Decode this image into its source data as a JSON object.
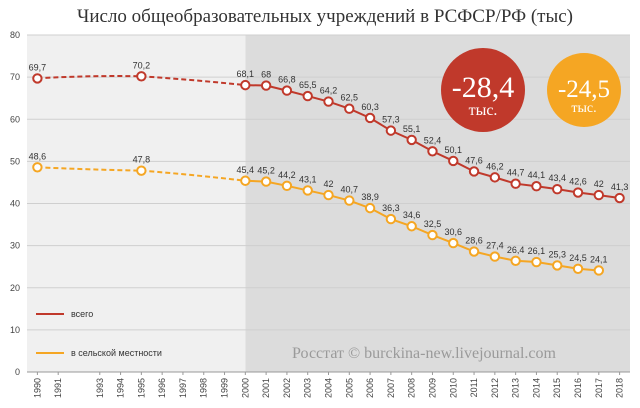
{
  "chart_data": {
    "type": "line",
    "title": "Число общеобразовательных учреждений в РСФСР/РФ (тыс)",
    "xlabel": "",
    "ylabel": "",
    "ylim": [
      0,
      80
    ],
    "yticks": [
      0,
      10,
      20,
      30,
      40,
      50,
      60,
      70,
      80
    ],
    "xticks": [
      1990,
      1991,
      1993,
      1994,
      1995,
      1996,
      1997,
      1998,
      1999,
      2000,
      2001,
      2002,
      2003,
      2004,
      2005,
      2006,
      2007,
      2008,
      2009,
      2010,
      2011,
      2012,
      2013,
      2014,
      2015,
      2016,
      2017,
      2018
    ],
    "grid": true,
    "legend_position": "bottom-left",
    "shaded_from_year": 2000,
    "series": [
      {
        "name": "всего",
        "color": "#c0392b",
        "x": [
          1990,
          1995,
          2000,
          2001,
          2002,
          2003,
          2004,
          2005,
          2006,
          2007,
          2008,
          2009,
          2010,
          2011,
          2012,
          2013,
          2014,
          2015,
          2016,
          2017,
          2018
        ],
        "values": [
          69.7,
          70.2,
          68.1,
          68,
          66.8,
          65.5,
          64.2,
          62.5,
          60.3,
          57.3,
          55.1,
          52.4,
          50.1,
          47.6,
          46.2,
          44.7,
          44.1,
          43.4,
          42.6,
          42,
          41.3
        ],
        "labels": [
          "69,7",
          "70,2",
          "68,1",
          "68",
          "66,8",
          "65,5",
          "64,2",
          "62,5",
          "60,3",
          "57,3",
          "55,1",
          "52,4",
          "50,1",
          "47,6",
          "46,2",
          "44,7",
          "44,1",
          "43,4",
          "42,6",
          "42",
          "41,3"
        ]
      },
      {
        "name": "в сельской местности",
        "color": "#f5a623",
        "x": [
          1990,
          1995,
          2000,
          2001,
          2002,
          2003,
          2004,
          2005,
          2006,
          2007,
          2008,
          2009,
          2010,
          2011,
          2012,
          2013,
          2014,
          2015,
          2016,
          2017
        ],
        "values": [
          48.6,
          47.8,
          45.4,
          45.2,
          44.2,
          43.1,
          42,
          40.7,
          38.9,
          36.3,
          34.6,
          32.5,
          30.6,
          28.6,
          27.4,
          26.4,
          26.1,
          25.3,
          24.5,
          24.1
        ],
        "labels": [
          "48,6",
          "47,8",
          "45,4",
          "45,2",
          "44,2",
          "43,1",
          "42",
          "40,7",
          "38,9",
          "36,3",
          "34,6",
          "32,5",
          "30,6",
          "28,6",
          "27,4",
          "26,4",
          "26,1",
          "25,3",
          "24,5",
          "24,1"
        ]
      }
    ],
    "annotations": [
      {
        "value": "-28,4",
        "unit": "тыс.",
        "color": "#c0392b"
      },
      {
        "value": "-24,5",
        "unit": "тыс.",
        "color": "#f5a623"
      }
    ]
  },
  "watermark": "Росстат © burckina-new.livejournal.com"
}
